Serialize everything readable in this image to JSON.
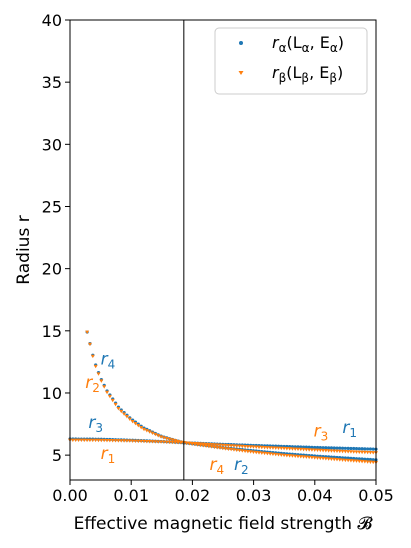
{
  "chart_data": {
    "type": "scatter",
    "xlabel": "Effective magnetic field strength 𝓑",
    "ylabel": "Radius r",
    "xlim": [
      0.0,
      0.05
    ],
    "ylim": [
      3.0,
      40.0
    ],
    "xticks": [
      "0.00",
      "0.01",
      "0.02",
      "0.03",
      "0.04",
      "0.05"
    ],
    "yticks": [
      "5",
      "10",
      "15",
      "20",
      "25",
      "30",
      "35",
      "40"
    ],
    "xtick_values": [
      0.0,
      0.01,
      0.02,
      0.03,
      0.04,
      0.05
    ],
    "ytick_values": [
      5,
      10,
      15,
      20,
      25,
      30,
      35,
      40
    ],
    "grid": false,
    "legend_placement": "top-right",
    "vertical_line_x": 0.0186,
    "colors": {
      "alpha": "#1f77b4",
      "beta": "#ff7f0e"
    },
    "series": [
      {
        "name": "rα(Lα, Eα)",
        "legend_main": "r",
        "legend_sub": "α",
        "legend_args": "(L",
        "legend_sub2": "α",
        "legend_mid": ", E",
        "legend_sub3": "α",
        "legend_end": ")",
        "marker": "dot",
        "curves": [
          {
            "label": "r1",
            "x": [
              0.0186,
              0.025,
              0.03,
              0.035,
              0.04,
              0.045,
              0.05
            ],
            "y": [
              6.0,
              5.87,
              5.78,
              5.7,
              5.62,
              5.55,
              5.48
            ]
          },
          {
            "label": "r2",
            "x": [
              0.0186,
              0.025,
              0.03,
              0.035,
              0.04,
              0.045,
              0.05
            ],
            "y": [
              6.0,
              5.6,
              5.35,
              5.12,
              4.93,
              4.77,
              4.62
            ]
          },
          {
            "label": "r3",
            "x": [
              0.0,
              0.005,
              0.01,
              0.015,
              0.0186
            ],
            "y": [
              6.3,
              6.28,
              6.2,
              6.1,
              6.0
            ]
          },
          {
            "label": "r4",
            "x": [
              0.0028,
              0.004,
              0.005,
              0.006,
              0.008,
              0.01,
              0.012,
              0.015,
              0.0186
            ],
            "y": [
              14.9,
              12.5,
              11.2,
              10.2,
              8.8,
              7.9,
              7.2,
              6.5,
              6.0
            ]
          }
        ]
      },
      {
        "name": "rβ(Lβ, Eβ)",
        "legend_main": "r",
        "legend_sub": "β",
        "legend_args": "(L",
        "legend_sub2": "β",
        "legend_mid": ", E",
        "legend_sub3": "β",
        "legend_end": ")",
        "marker": "triangle",
        "curves": [
          {
            "label": "r3",
            "x": [
              0.0186,
              0.025,
              0.03,
              0.035,
              0.04,
              0.045,
              0.05
            ],
            "y": [
              6.0,
              5.8,
              5.67,
              5.55,
              5.42,
              5.3,
              5.2
            ]
          },
          {
            "label": "r4",
            "x": [
              0.0186,
              0.025,
              0.03,
              0.035,
              0.04,
              0.045,
              0.05
            ],
            "y": [
              6.0,
              5.55,
              5.25,
              5.0,
              4.8,
              4.6,
              4.42
            ]
          },
          {
            "label": "r1",
            "x": [
              0.0,
              0.005,
              0.01,
              0.015,
              0.0186
            ],
            "y": [
              6.22,
              6.2,
              6.15,
              6.07,
              6.0
            ]
          },
          {
            "label": "r2",
            "x": [
              0.0028,
              0.004,
              0.005,
              0.006,
              0.008,
              0.01,
              0.012,
              0.015,
              0.0186
            ],
            "y": [
              14.9,
              12.4,
              11.1,
              10.1,
              8.7,
              7.8,
              7.1,
              6.45,
              6.0
            ]
          }
        ]
      }
    ],
    "annotations": [
      {
        "letter": "r",
        "sub": "4",
        "x": 0.005,
        "y": 12.3,
        "color": "alpha"
      },
      {
        "letter": "r",
        "sub": "2",
        "x": 0.0025,
        "y": 10.4,
        "color": "beta"
      },
      {
        "letter": "r",
        "sub": "3",
        "x": 0.003,
        "y": 7.2,
        "color": "alpha"
      },
      {
        "letter": "r",
        "sub": "1",
        "x": 0.005,
        "y": 4.7,
        "color": "beta"
      },
      {
        "letter": "r",
        "sub": "4",
        "x": 0.0228,
        "y": 3.8,
        "color": "beta"
      },
      {
        "letter": "r",
        "sub": "2",
        "x": 0.0268,
        "y": 3.8,
        "color": "alpha"
      },
      {
        "letter": "r",
        "sub": "3",
        "x": 0.0398,
        "y": 6.5,
        "color": "beta"
      },
      {
        "letter": "r",
        "sub": "1",
        "x": 0.0445,
        "y": 6.8,
        "color": "alpha"
      }
    ]
  }
}
